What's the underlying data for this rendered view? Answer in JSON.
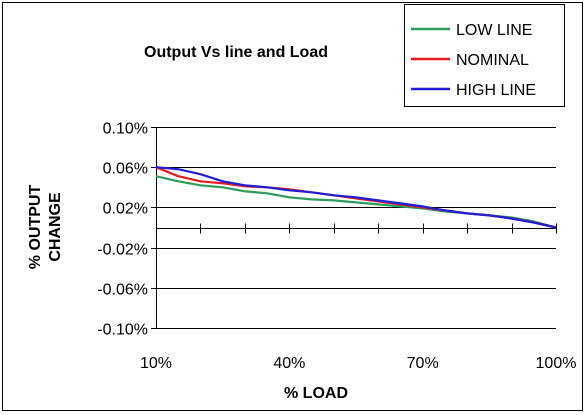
{
  "chart_data": {
    "type": "line",
    "title": "Output Vs line and Load",
    "xlabel": "% LOAD",
    "ylabel_lines": [
      "% OUTPUT",
      "CHANGE"
    ],
    "x_ticks": [
      10,
      40,
      70,
      100
    ],
    "x_tick_labels": [
      "10%",
      "40%",
      "70%",
      "100%"
    ],
    "y_ticks": [
      0.1,
      0.06,
      0.02,
      -0.02,
      -0.06,
      -0.1
    ],
    "y_tick_labels": [
      "0.10%",
      "0.06%",
      "0.02%",
      "-0.02%",
      "-0.06%",
      "-0.10%"
    ],
    "xlim": [
      10,
      100
    ],
    "ylim": [
      -0.1,
      0.1
    ],
    "grid": true,
    "legend_position": "top-right",
    "series": [
      {
        "name": "LOW LINE",
        "color": "#2e9a5a",
        "x": [
          10,
          15,
          20,
          25,
          30,
          35,
          40,
          45,
          50,
          55,
          60,
          65,
          70,
          75,
          80,
          85,
          90,
          95,
          100
        ],
        "y": [
          0.051,
          0.046,
          0.042,
          0.04,
          0.036,
          0.034,
          0.03,
          0.028,
          0.027,
          0.025,
          0.023,
          0.021,
          0.019,
          0.016,
          0.014,
          0.012,
          0.01,
          0.006,
          0.0
        ]
      },
      {
        "name": "NOMINAL",
        "color": "#e31a1c",
        "x": [
          10,
          15,
          20,
          25,
          30,
          35,
          40,
          45,
          50,
          55,
          60,
          65,
          70,
          75,
          80,
          85,
          90,
          95,
          100
        ],
        "y": [
          0.06,
          0.051,
          0.046,
          0.044,
          0.041,
          0.04,
          0.038,
          0.035,
          0.032,
          0.029,
          0.026,
          0.023,
          0.02,
          0.017,
          0.014,
          0.012,
          0.009,
          0.005,
          0.0
        ]
      },
      {
        "name": "HIGH LINE",
        "color": "#1f1fd6",
        "x": [
          10,
          15,
          20,
          25,
          30,
          35,
          40,
          45,
          50,
          55,
          60,
          65,
          70,
          75,
          80,
          85,
          90,
          95,
          100
        ],
        "y": [
          0.06,
          0.058,
          0.053,
          0.046,
          0.042,
          0.04,
          0.037,
          0.035,
          0.032,
          0.03,
          0.027,
          0.024,
          0.021,
          0.017,
          0.014,
          0.012,
          0.009,
          0.005,
          0.0
        ]
      }
    ]
  }
}
